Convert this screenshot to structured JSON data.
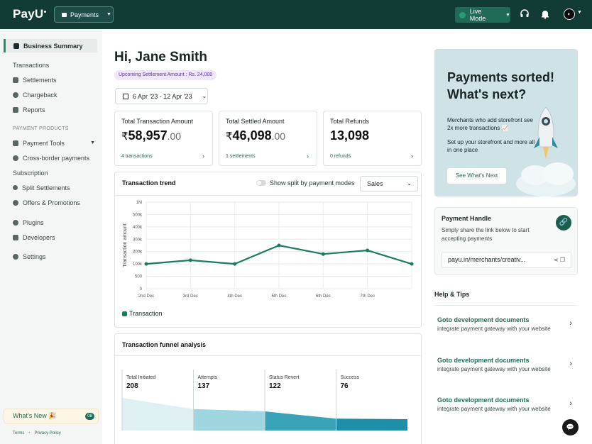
{
  "topbar": {
    "logo": "PayU",
    "product_label": "Payments",
    "mode_label": "Live Mode"
  },
  "sidebar": {
    "items_top": [
      {
        "label": "Business Summary",
        "active": true
      },
      {
        "label": "Transactions"
      },
      {
        "label": "Settlements"
      },
      {
        "label": "Chargeback"
      },
      {
        "label": "Reports"
      }
    ],
    "section_heading": "PAYMENT PRODUCTS",
    "items_products": [
      {
        "label": "Payment Tools"
      },
      {
        "label": "Cross-border payments"
      },
      {
        "label": "Subscription"
      },
      {
        "label": "Split Settlements"
      },
      {
        "label": "Offers & Promotions"
      }
    ],
    "items_bottom": [
      {
        "label": "Plugins"
      },
      {
        "label": "Developers"
      },
      {
        "label": "Settings"
      }
    ],
    "whats_new": "What's New 🎉",
    "whats_new_badge": "08",
    "footer": {
      "terms": "Terms",
      "privacy": "Privacy Policy"
    }
  },
  "main": {
    "greeting": "Hi, Jane Smith",
    "settlement_badge": "Upcoming Settlement Amount : Rs. 24,000",
    "date_range": "6 Apr '23 - 12 Apr '23",
    "kpis": [
      {
        "label": "Total Transaction Amount",
        "currency": "₹",
        "whole": "58,957",
        "decimal": ".00",
        "footer": "4 transactions"
      },
      {
        "label": "Total Settled Amount",
        "currency": "₹",
        "whole": "46,098",
        "decimal": ".00",
        "footer": "1 settlements"
      },
      {
        "label": "Total Refunds",
        "currency": "",
        "whole": "13,098",
        "decimal": "",
        "footer": "0 refunds"
      }
    ],
    "trend": {
      "title": "Transaction trend",
      "toggle_label": "Show split by payment modes",
      "select_value": "Sales",
      "legend": "Transaction"
    },
    "funnel": {
      "title": "Transaction funnel analysis",
      "stages": [
        {
          "label": "Total Initiated",
          "value": "208"
        },
        {
          "label": "Attempts",
          "value": "137"
        },
        {
          "label": "Status Revert",
          "value": "122"
        },
        {
          "label": "Success",
          "value": "76"
        }
      ]
    }
  },
  "chart_data": {
    "type": "line",
    "x": [
      "2nd Dec",
      "3rd Dec",
      "4th Dec",
      "5th Dec",
      "6th Dec",
      "7th Dec",
      ""
    ],
    "series": [
      {
        "name": "Transaction",
        "values": [
          100000,
          130000,
          100000,
          250000,
          180000,
          210000,
          100000
        ]
      }
    ],
    "y_ticks": [
      "0",
      "500",
      "100k",
      "200k",
      "300k",
      "400k",
      "500k",
      "1M"
    ],
    "ylabel": "Transaction amount",
    "xlabel": "",
    "grid": true,
    "color": "#1a7a62"
  },
  "promo": {
    "title": "Payments sorted! What's next?",
    "text1": "Merchants who add storefront see 2x more transactions 📈",
    "text2": "Set up your storefront and more all in one place",
    "button": "See What's Next"
  },
  "handle": {
    "title": "Payment Handle",
    "desc": "Simply share the link below to start accepting payments",
    "url": "payu.in/merchants/creativ..."
  },
  "help": {
    "title": "Help & Tips",
    "items": [
      {
        "heading": "Goto development documents",
        "desc": "integrate payment gateway with your website"
      },
      {
        "heading": "Goto development documents",
        "desc": "integrate payment gateway with your website"
      },
      {
        "heading": "Goto development documents",
        "desc": "integrate payment gateway with your website"
      }
    ]
  }
}
